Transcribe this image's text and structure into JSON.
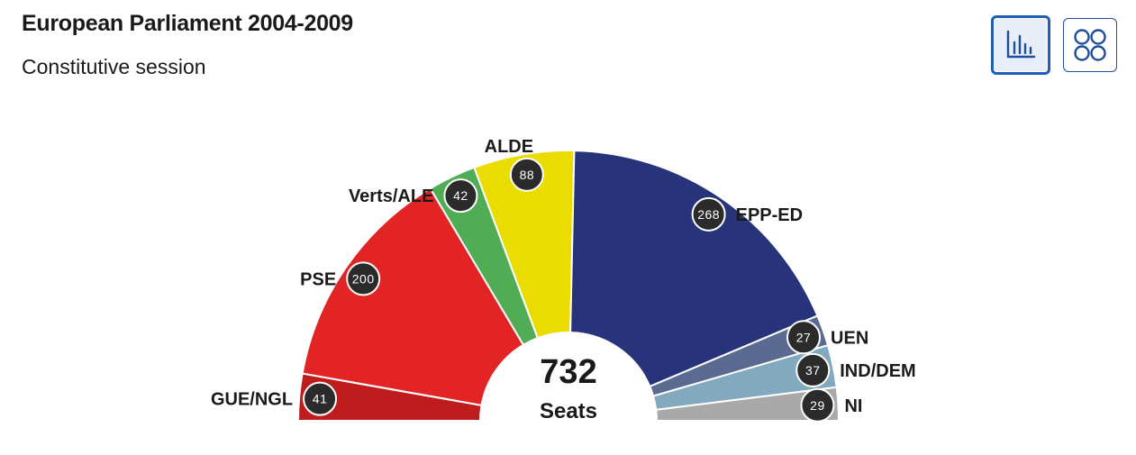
{
  "header": {
    "title": "European Parliament 2004-2009",
    "subtitle": "Constitutive session"
  },
  "view_toggle": {
    "options": [
      {
        "name": "chart-view",
        "icon": "bar-chart-icon",
        "active": true
      },
      {
        "name": "grid-view",
        "icon": "grid-icon",
        "active": false
      }
    ],
    "accent_color": "#1f5fb8"
  },
  "chart_data": {
    "type": "pie",
    "shape": "semicircle",
    "total": 732,
    "total_label": "Seats",
    "series": [
      {
        "name": "GUE/NGL",
        "value": 41,
        "color": "#bf1d1d"
      },
      {
        "name": "PSE",
        "value": 200,
        "color": "#e32424"
      },
      {
        "name": "Verts/ALE",
        "value": 42,
        "color": "#50ad55"
      },
      {
        "name": "ALDE",
        "value": 88,
        "color": "#ebdc00"
      },
      {
        "name": "EPP-ED",
        "value": 268,
        "color": "#27347a"
      },
      {
        "name": "UEN",
        "value": 27,
        "color": "#5a6a90"
      },
      {
        "name": "IND/DEM",
        "value": 37,
        "color": "#82a9bd"
      },
      {
        "name": "NI",
        "value": 29,
        "color": "#a9a9a9"
      }
    ]
  }
}
